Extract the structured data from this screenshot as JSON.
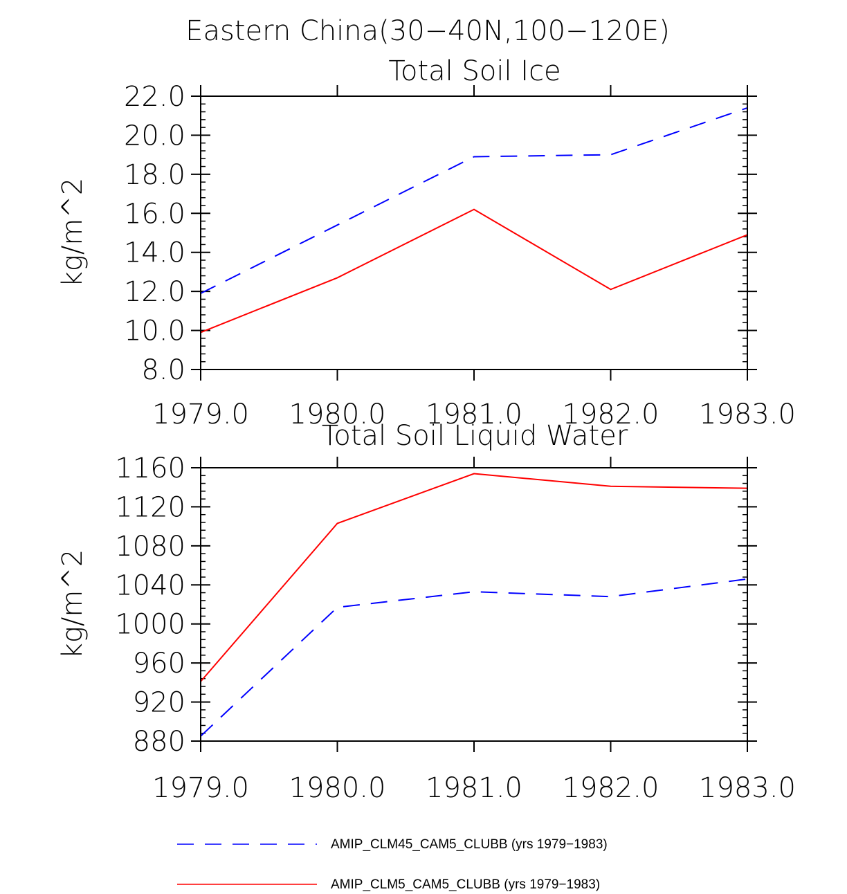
{
  "figure_title": "Eastern China(30−40N,100−120E)",
  "chart_data": [
    {
      "type": "line",
      "title": "Total Soil Ice",
      "xlabel": "",
      "ylabel": "kg/m^2",
      "x": [
        1979,
        1980,
        1981,
        1982,
        1983
      ],
      "xtick_labels": [
        "1979.0",
        "1980.0",
        "1981.0",
        "1982.0",
        "1983.0"
      ],
      "xlim": [
        1979,
        1983
      ],
      "ylim": [
        8,
        22
      ],
      "ytick_labels": [
        "8.0",
        "10.0",
        "12.0",
        "14.0",
        "16.0",
        "18.0",
        "20.0",
        "22.0"
      ],
      "series": [
        {
          "name": "AMIP_CLM45_CAM5_CLUBB (yrs 1979−1983)",
          "color": "#0000ff",
          "dash": "dashed",
          "values": [
            11.9,
            15.4,
            18.9,
            19.0,
            21.4
          ]
        },
        {
          "name": "AMIP_CLM5_CAM5_CLUBB (yrs 1979−1983)",
          "color": "#ff0000",
          "dash": "solid",
          "values": [
            9.9,
            12.7,
            16.2,
            12.1,
            14.9
          ]
        }
      ]
    },
    {
      "type": "line",
      "title": "Total Soil Liquid Water",
      "xlabel": "",
      "ylabel": "kg/m^2",
      "x": [
        1979,
        1980,
        1981,
        1982,
        1983
      ],
      "xtick_labels": [
        "1979.0",
        "1980.0",
        "1981.0",
        "1982.0",
        "1983.0"
      ],
      "xlim": [
        1979,
        1983
      ],
      "ylim": [
        880,
        1160
      ],
      "ytick_labels": [
        "880",
        "920",
        "960",
        "1000",
        "1040",
        "1080",
        "1120",
        "1160"
      ],
      "series": [
        {
          "name": "AMIP_CLM45_CAM5_CLUBB (yrs 1979−1983)",
          "color": "#0000ff",
          "dash": "dashed",
          "values": [
            885,
            1017,
            1033,
            1028,
            1046
          ]
        },
        {
          "name": "AMIP_CLM5_CAM5_CLUBB (yrs 1979−1983)",
          "color": "#ff0000",
          "dash": "solid",
          "values": [
            941,
            1103,
            1154,
            1141,
            1139
          ]
        }
      ]
    }
  ],
  "legend": {
    "entries": [
      {
        "label": "AMIP_CLM45_CAM5_CLUBB (yrs 1979−1983)",
        "color": "#0000ff",
        "dash": "dashed"
      },
      {
        "label": "AMIP_CLM5_CAM5_CLUBB (yrs 1979−1983)",
        "color": "#ff0000",
        "dash": "solid"
      }
    ]
  }
}
